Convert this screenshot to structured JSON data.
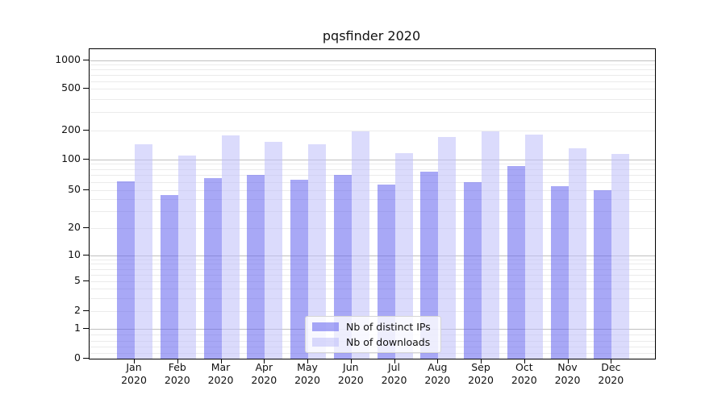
{
  "figure": {
    "background": "#ffffff"
  },
  "chart_data": {
    "type": "bar",
    "title": "pqsfinder 2020",
    "categories": [
      "Jan 2020",
      "Feb 2020",
      "Mar 2020",
      "Apr 2020",
      "May 2020",
      "Jun 2020",
      "Jul 2020",
      "Aug 2020",
      "Sep 2020",
      "Oct 2020",
      "Nov 2020",
      "Dec 2020"
    ],
    "series": [
      {
        "name": "Nb of distinct IPs",
        "color": "#6161ef",
        "opacity": 0.55,
        "values": [
          61,
          44,
          65,
          70,
          63,
          70,
          56,
          75,
          60,
          86,
          54,
          50
        ]
      },
      {
        "name": "Nb of downloads",
        "color": "#bebefa",
        "opacity": 0.55,
        "values": [
          145,
          110,
          178,
          153,
          143,
          197,
          116,
          170,
          197,
          182,
          131,
          114
        ]
      }
    ],
    "xlabel": "",
    "ylabel": "",
    "yscale": "symlog",
    "yticks": [
      0,
      1,
      2,
      5,
      10,
      20,
      50,
      100,
      200,
      500,
      1000
    ],
    "ylim": [
      0,
      1300
    ],
    "grid": true,
    "legend_position": "lower center",
    "grid_major_color": "#c0c0c0",
    "grid_minor_color": "#ebebeb"
  }
}
